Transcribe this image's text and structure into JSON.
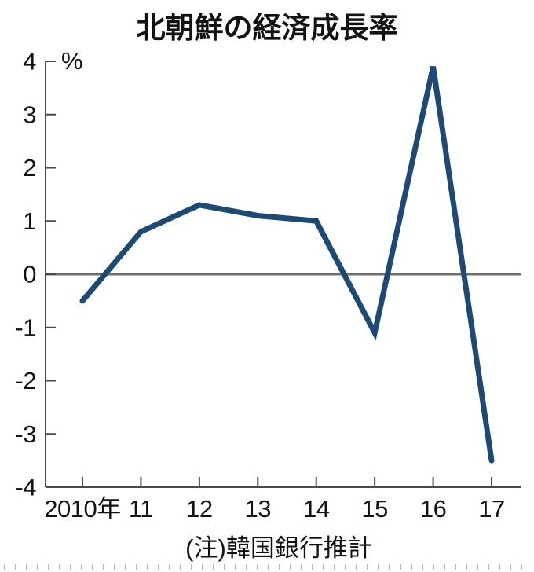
{
  "title": "北朝鮮の経済成長率",
  "note": "(注)韓国銀行推計",
  "chart_data": {
    "type": "line",
    "title": "北朝鮮の経済成長率",
    "categories": [
      "2010年",
      "11",
      "12",
      "13",
      "14",
      "15",
      "16",
      "17"
    ],
    "values": [
      -0.5,
      0.8,
      1.3,
      1.1,
      1.0,
      -1.1,
      3.9,
      -3.5
    ],
    "xlabel": "",
    "ylabel": "%",
    "unit_label": "%",
    "ylim": [
      -4,
      4
    ],
    "yticks": [
      4,
      3,
      2,
      1,
      0,
      -1,
      -2,
      -3,
      -4
    ],
    "grid": false,
    "legend": "none",
    "zero_baseline": true,
    "note": "(注)韓国銀行推計",
    "colors": {
      "line": "#1c4a74",
      "zero_line": "#6e6e6e",
      "axis": "#4a4a4a",
      "text": "#121212",
      "perforation": "#b8b8b8"
    }
  }
}
